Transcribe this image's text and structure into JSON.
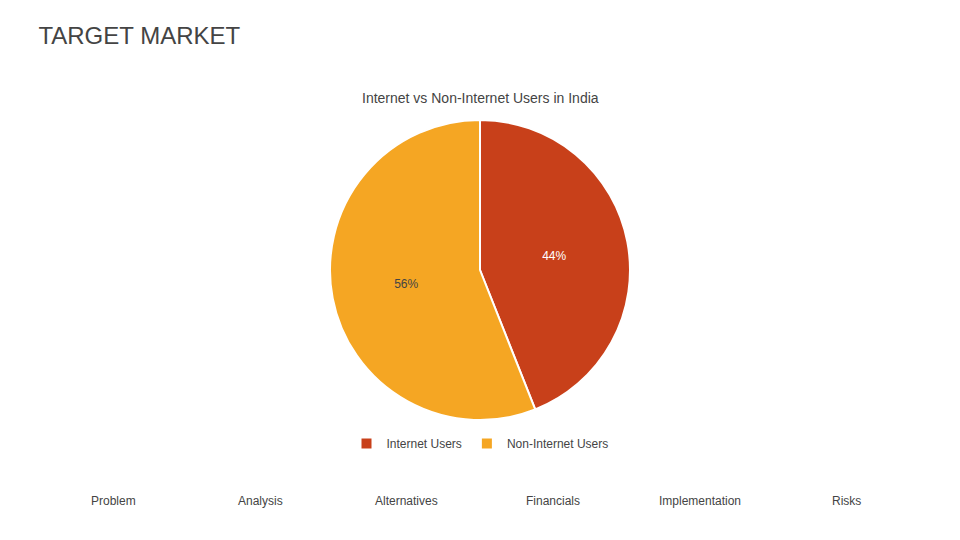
{
  "chart_data": {
    "type": "pie",
    "title": "TARGET MARKET",
    "subtitle": "Internet vs Non-Internet Users in India",
    "categories": [
      "Internet Users",
      "Non-Internet Users"
    ],
    "values": [
      44,
      56
    ],
    "value_labels": [
      "44%",
      "56%"
    ],
    "data_labels": true,
    "colors": [
      "#C8401A",
      "#F5A623"
    ],
    "legend": "bottom",
    "annotations": [
      "Problem",
      "Analysis",
      "Alternatives",
      "Financials",
      "Implementation",
      "Risks"
    ]
  }
}
